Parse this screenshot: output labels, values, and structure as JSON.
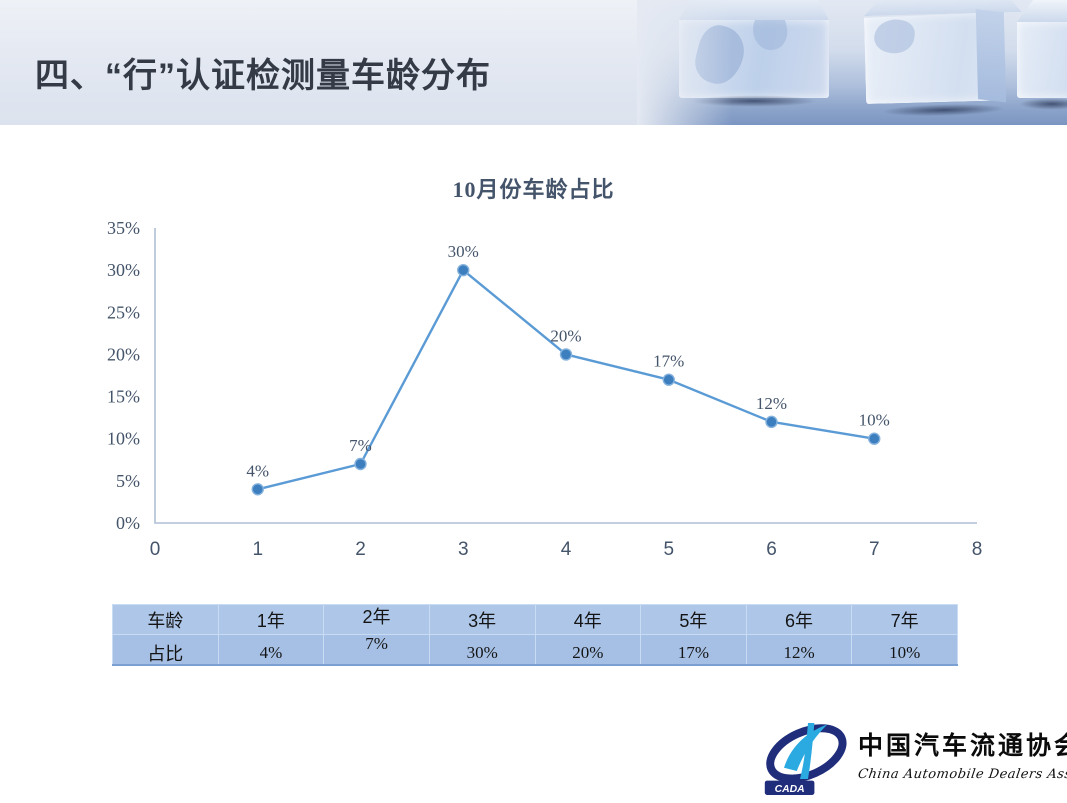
{
  "header": {
    "title": "四、“行”认证检测量车龄分布"
  },
  "chart_data": {
    "type": "line",
    "title": "10月份车龄占比",
    "x": [
      1,
      2,
      3,
      4,
      5,
      6,
      7
    ],
    "values": [
      4,
      7,
      30,
      20,
      17,
      12,
      10
    ],
    "data_labels": [
      "4%",
      "7%",
      "30%",
      "20%",
      "17%",
      "12%",
      "10%"
    ],
    "xlabel": "",
    "ylabel": "",
    "xlim": [
      0,
      8
    ],
    "ylim": [
      0,
      35
    ],
    "x_ticks": [
      "0",
      "1",
      "2",
      "3",
      "4",
      "5",
      "6",
      "7",
      "8"
    ],
    "y_ticks": [
      "0%",
      "5%",
      "10%",
      "15%",
      "20%",
      "25%",
      "30%",
      "35%"
    ],
    "grid": false,
    "legend": false
  },
  "table": {
    "rows": [
      [
        "车龄",
        "1年",
        "2年",
        "3年",
        "4年",
        "5年",
        "6年",
        "7年"
      ],
      [
        "占比",
        "4%",
        "7%",
        "30%",
        "20%",
        "17%",
        "12%",
        "10%"
      ]
    ]
  },
  "logo": {
    "acronym": "CADA",
    "org_cn": "中国汽车流通协会",
    "org_en": "China  Automobile  Dealers  Association"
  },
  "colors": {
    "chart_line": "#5B9BD5",
    "chart_marker": "#3D7EBF",
    "chart_marker_ring": "#85B2DD",
    "axis": "#AFBFD6",
    "chart_text": "#44546A",
    "table_row1_bg": "#AEC7E9",
    "table_row2_bg": "#A6C0E5",
    "logo_navy": "#1F2D7B",
    "logo_lightblue": "#2BAAE2",
    "title_text": "#343B47"
  }
}
